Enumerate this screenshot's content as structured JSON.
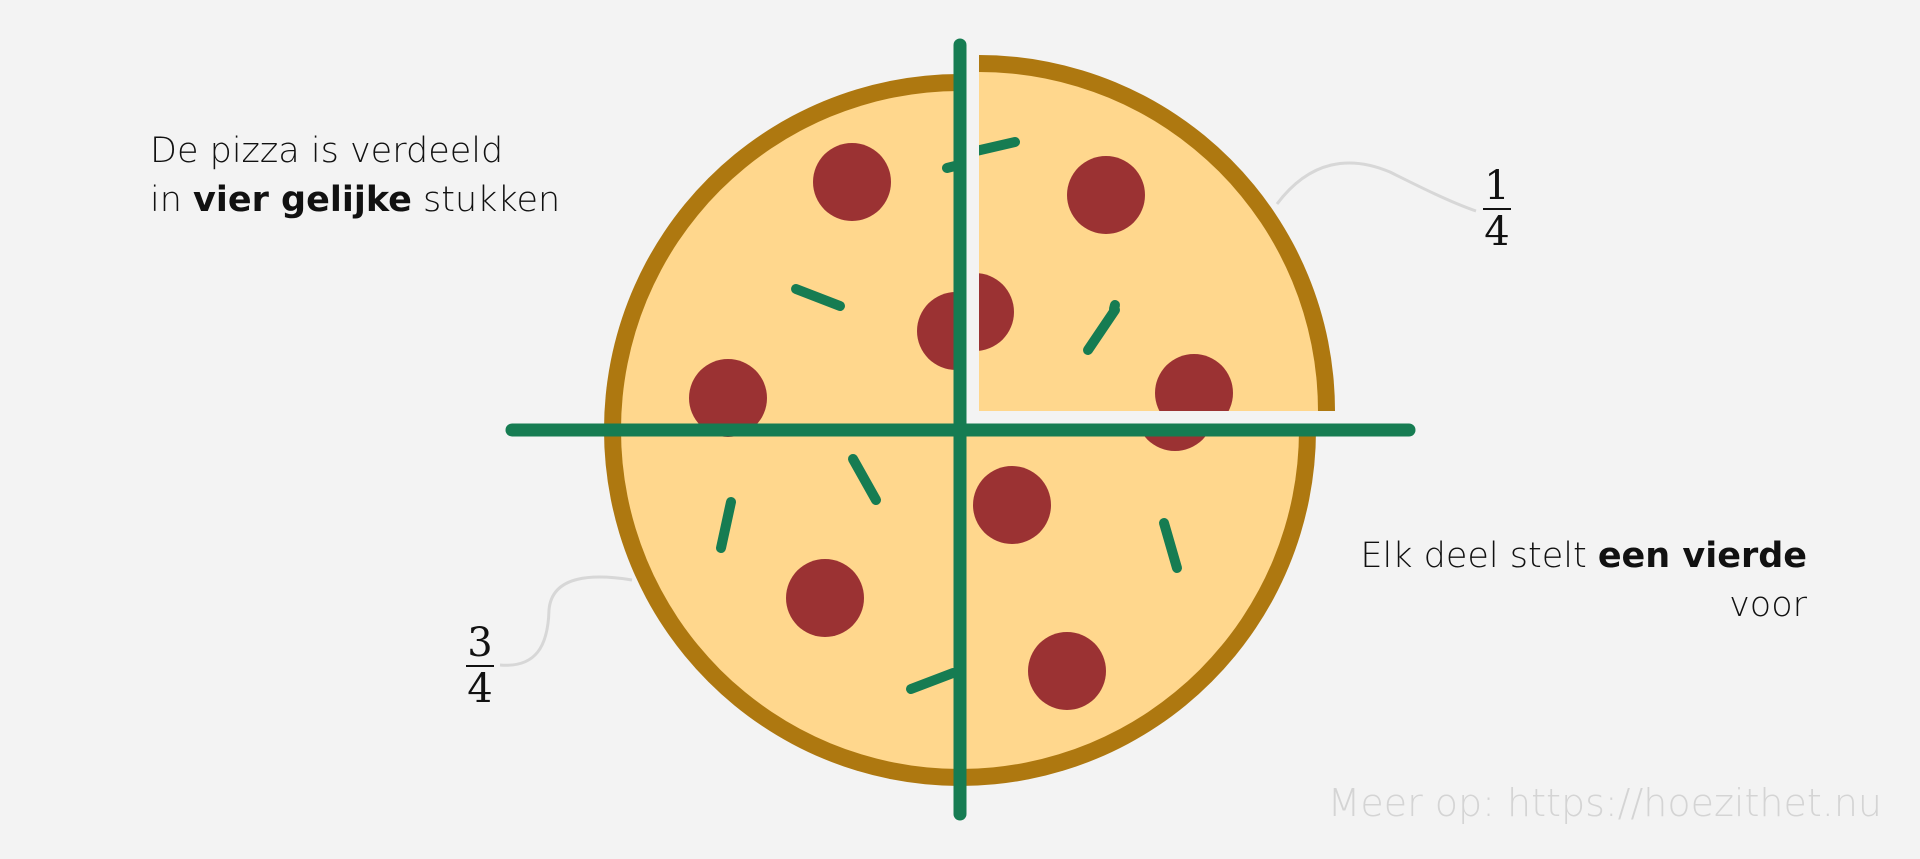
{
  "caption_left": {
    "line1": "De pizza is verdeeld",
    "line2_prefix": "in ",
    "line2_bold": "vier gelijke",
    "line2_suffix": " stukken"
  },
  "caption_right": {
    "line1_prefix": "Elk deel stelt ",
    "line1_bold": "een vierde",
    "line2": "voor"
  },
  "fraction_quarter": {
    "numerator": "1",
    "denominator": "4"
  },
  "fraction_three_quarters": {
    "numerator": "3",
    "denominator": "4"
  },
  "footer": "Meer op: https://hoezithet.nu",
  "colors": {
    "background": "#f3f3f3",
    "crust": "#ae7810",
    "cheese": "#ffd78d",
    "pepperoni": "#9b3233",
    "herb": "#167c52",
    "cut_line": "#167c52",
    "leader_line": "#d7d7d7"
  },
  "pizza": {
    "slices": 4,
    "separated_slices": 1
  }
}
